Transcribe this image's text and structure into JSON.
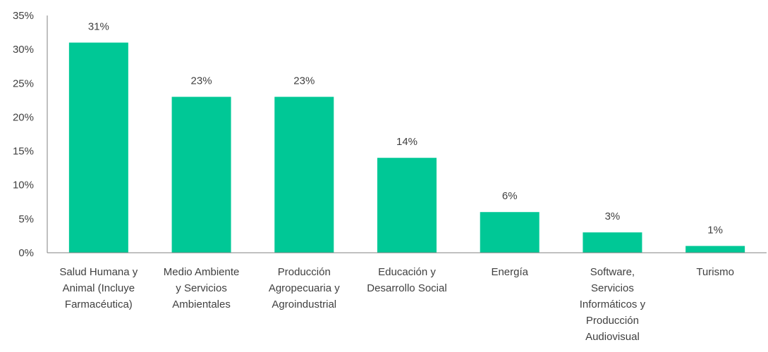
{
  "chart_data": {
    "type": "bar",
    "categories": [
      [
        "Salud Humana y",
        "Animal (Incluye",
        "Farmacéutica)"
      ],
      [
        "Medio Ambiente",
        "y Servicios",
        "Ambientales"
      ],
      [
        "Producción",
        "Agropecuaria y",
        "Agroindustrial"
      ],
      [
        "Educación y",
        "Desarrollo Social"
      ],
      [
        "Energía"
      ],
      [
        "Software,",
        "Servicios",
        "Informáticos y",
        "Producción",
        "Audiovisual"
      ],
      [
        "Turismo"
      ]
    ],
    "values": [
      31,
      23,
      23,
      14,
      6,
      3,
      1
    ],
    "value_labels": [
      "31%",
      "23%",
      "23%",
      "14%",
      "6%",
      "3%",
      "1%"
    ],
    "y_ticks": [
      0,
      5,
      10,
      15,
      20,
      25,
      30,
      35
    ],
    "y_tick_labels": [
      "0%",
      "5%",
      "10%",
      "15%",
      "20%",
      "25%",
      "30%",
      "35%"
    ],
    "ylim": [
      0,
      35
    ],
    "bar_color": "#00c896",
    "axis_color": "#808080",
    "text_color": "#404040",
    "grid": false,
    "legend": "none"
  }
}
